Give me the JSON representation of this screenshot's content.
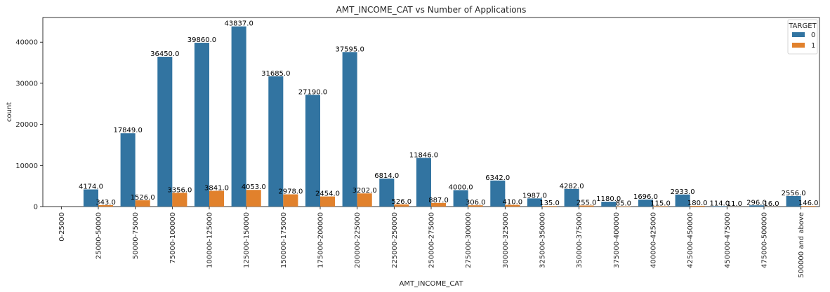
{
  "chart_data": {
    "type": "bar",
    "title": "AMT_INCOME_CAT vs Number of Applications",
    "xlabel": "AMT_INCOME_CAT",
    "ylabel": "count",
    "ylim": [
      0,
      46000
    ],
    "yticks": [
      0,
      10000,
      20000,
      30000,
      40000
    ],
    "grid": false,
    "legend": {
      "title": "TARGET",
      "position": "top-right"
    },
    "categories": [
      "0-25000",
      "25000-50000",
      "50000-75000",
      "75000-100000",
      "100000-125000",
      "125000-150000",
      "150000-175000",
      "175000-200000",
      "200000-225000",
      "225000-250000",
      "250000-275000",
      "275000-300000",
      "300000-325000",
      "325000-350000",
      "350000-375000",
      "375000-400000",
      "400000-425000",
      "425000-450000",
      "450000-475000",
      "475000-500000",
      "500000 and above"
    ],
    "series": [
      {
        "name": "0",
        "color": "#3274a1",
        "values": [
          null,
          4174,
          17849,
          36450,
          39860,
          43837,
          31685,
          27190,
          37595,
          6814,
          11846,
          4000,
          6342,
          1987,
          4282,
          1180,
          1696,
          2933,
          114,
          296,
          2556
        ],
        "labels": [
          null,
          "4174.0",
          "17849.0",
          "36450.0",
          "39860.0",
          "43837.0",
          "31685.0",
          "27190.0",
          "37595.0",
          "6814.0",
          "11846.0",
          "4000.0",
          "6342.0",
          "1987.0",
          "4282.0",
          "1180.0",
          "1696.0",
          "2933.0",
          "114.0",
          "296.0",
          "2556.0"
        ]
      },
      {
        "name": "1",
        "color": "#e1812c",
        "values": [
          null,
          343,
          1526,
          3356,
          3841,
          4053,
          2978,
          2454,
          3202,
          526,
          887,
          306,
          410,
          135,
          255,
          85,
          115,
          180,
          11,
          16,
          146
        ],
        "labels": [
          null,
          "343.0",
          "1526.0",
          "3356.0",
          "3841.0",
          "4053.0",
          "2978.0",
          "2454.0",
          "3202.0",
          "526.0",
          "887.0",
          "306.0",
          "410.0",
          "135.0",
          "255.0",
          "85.0",
          "115.0",
          "180.0",
          "11.0",
          "16.0",
          "146.0"
        ]
      }
    ]
  }
}
